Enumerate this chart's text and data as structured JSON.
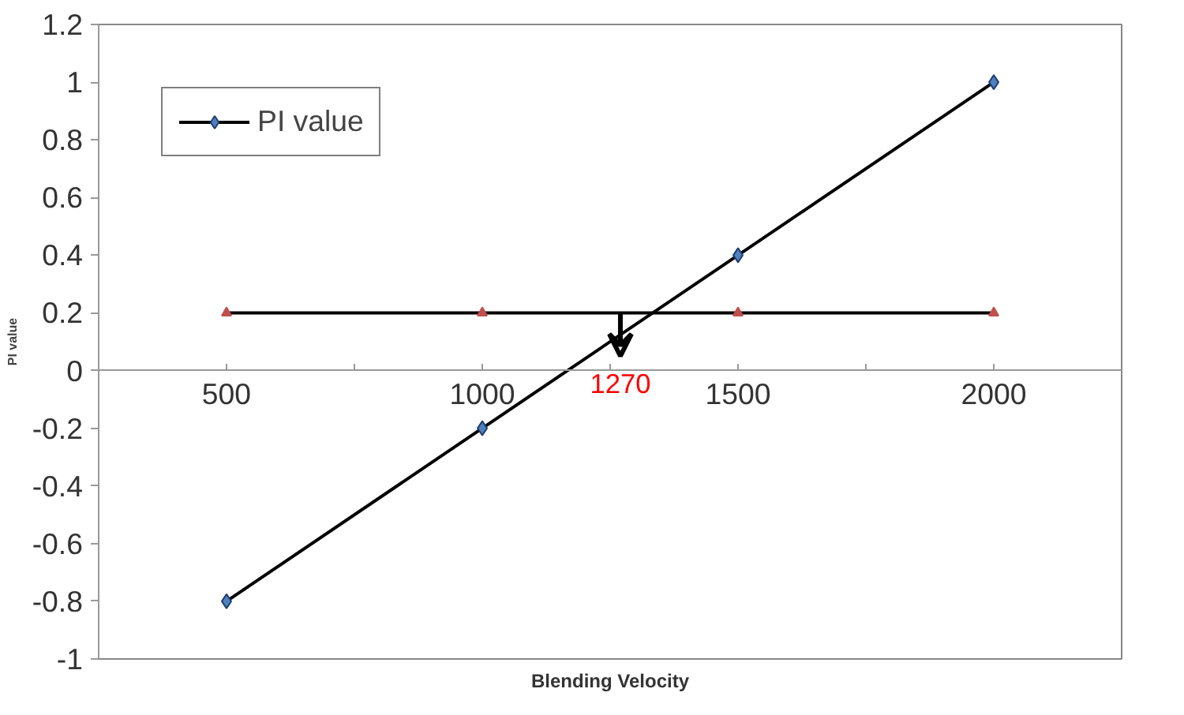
{
  "chart_data": {
    "type": "line",
    "xlabel": "Blending Velocity",
    "ylabel": "PI value",
    "x": [
      500,
      1000,
      1500,
      2000
    ],
    "series": [
      {
        "name": "PI value",
        "color": "#4f81bd",
        "values": [
          -0.8,
          -0.2,
          0.4,
          1.0
        ],
        "marker": "diamond"
      },
      {
        "color": "#c0504d",
        "values": [
          0.2,
          0.2,
          0.2,
          0.2
        ],
        "marker": "triangle"
      }
    ],
    "xlim": [
      250,
      2250
    ],
    "xticks": [
      500,
      {
        "value": 750,
        "label": null
      },
      1000,
      {
        "value": 1250,
        "label": null
      },
      1500,
      {
        "value": 1750,
        "label": null
      },
      2000
    ],
    "ylim": [
      -1,
      1.2
    ],
    "yticks": [
      {
        "value": -1,
        "label": "-1"
      },
      {
        "value": -0.8,
        "label": "-0.8"
      },
      {
        "value": -0.6,
        "label": "-0.6"
      },
      {
        "value": -0.4,
        "label": "-0.4"
      },
      {
        "value": -0.2,
        "label": "-0.2"
      },
      0,
      {
        "value": 0.2,
        "label": "0.2"
      },
      {
        "value": 0.4,
        "label": "0.4"
      },
      {
        "value": 0.6,
        "label": "0.6"
      },
      {
        "value": 0.8,
        "label": "0.8"
      },
      1,
      {
        "value": 1.2,
        "label": "1.2"
      }
    ],
    "annotations": [
      {
        "text": "1270",
        "x": 1270,
        "y": 0.2
      }
    ],
    "legend": "top left",
    "grid": false
  }
}
